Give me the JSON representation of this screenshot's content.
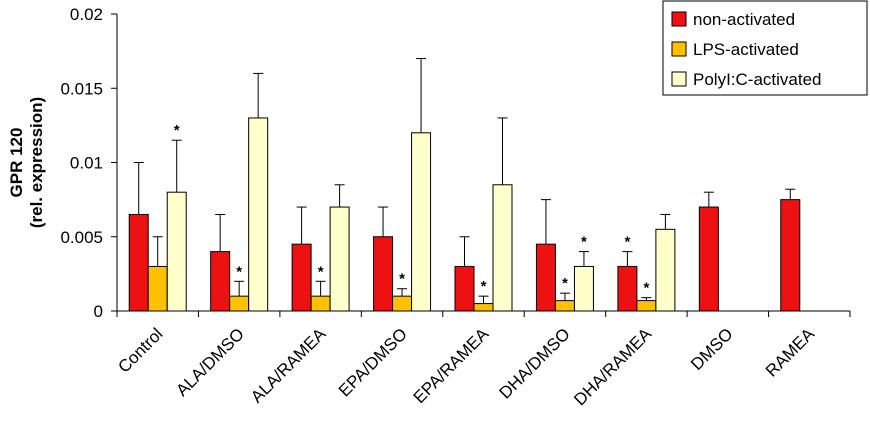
{
  "chart_data": {
    "type": "bar",
    "title": "",
    "xlabel": "",
    "ylabel_lines": [
      "GPR 120",
      "(rel. expression)"
    ],
    "ylim": [
      0,
      0.02
    ],
    "yticks": [
      {
        "value": 0,
        "label": "0"
      },
      {
        "value": 0.005,
        "label": "0.005"
      },
      {
        "value": 0.01,
        "label": "0.01"
      },
      {
        "value": 0.015,
        "label": "0.015"
      },
      {
        "value": 0.02,
        "label": "0.02"
      }
    ],
    "categories": [
      "Control",
      "ALA/DMSO",
      "ALA/RAMEA",
      "EPA/DMSO",
      "EPA/RAMEA",
      "DHA/DMSO",
      "DHA/RAMEA",
      "DMSO",
      "RAMEA"
    ],
    "legend_position": "top-right",
    "significance_marker": "*",
    "series": [
      {
        "name": "non-activated",
        "color": "#ee1111",
        "values": [
          0.0065,
          0.004,
          0.0045,
          0.005,
          0.003,
          0.0045,
          0.003,
          0.007,
          0.0075
        ],
        "errors": [
          0.0035,
          0.0025,
          0.0025,
          0.002,
          0.002,
          0.003,
          0.001,
          0.001,
          0.0007
        ],
        "significant": [
          false,
          false,
          false,
          false,
          false,
          false,
          true,
          false,
          false
        ]
      },
      {
        "name": "LPS-activated",
        "color": "#ffc000",
        "values": [
          0.003,
          0.001,
          0.001,
          0.001,
          0.0005,
          0.0007,
          0.0007,
          null,
          null
        ],
        "errors": [
          0.002,
          0.001,
          0.001,
          0.0005,
          0.0005,
          0.0005,
          0.0002,
          null,
          null
        ],
        "significant": [
          false,
          true,
          true,
          true,
          true,
          true,
          true,
          false,
          false
        ]
      },
      {
        "name": "PolyI:C-activated",
        "color": "#ffffcc",
        "values": [
          0.008,
          0.013,
          0.007,
          0.012,
          0.0085,
          0.003,
          0.0055,
          null,
          null
        ],
        "errors": [
          0.0035,
          0.003,
          0.0015,
          0.005,
          0.0045,
          0.001,
          0.001,
          null,
          null
        ],
        "significant": [
          true,
          false,
          false,
          false,
          false,
          true,
          false,
          false,
          false
        ]
      }
    ]
  }
}
